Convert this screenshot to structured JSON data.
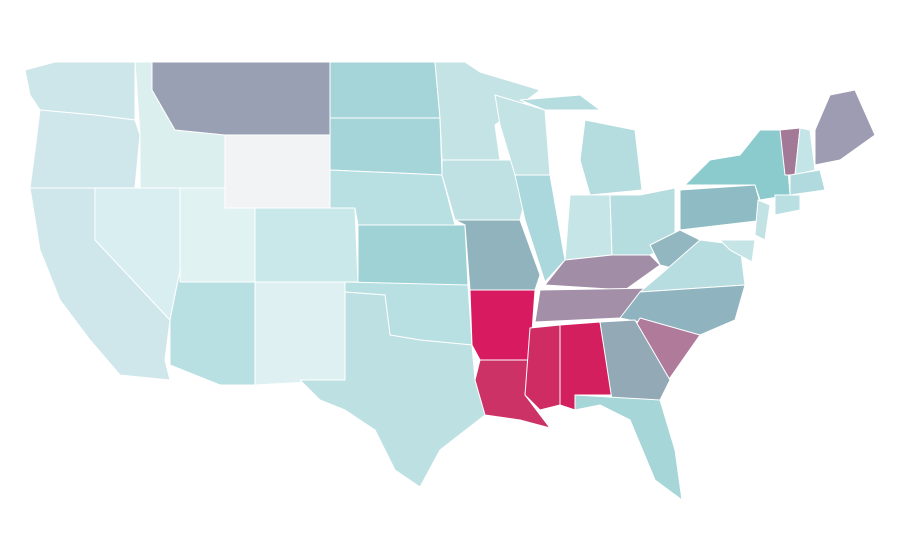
{
  "regions": [
    {
      "color": "#cce6ea"
    },
    {
      "color": "#cfe7eb"
    },
    {
      "color": "#cfe7eb"
    },
    {
      "color": "#dcefef"
    },
    {
      "color": "#d9eef0"
    },
    {
      "color": "#9aa0b3"
    },
    {
      "color": "#f2f3f4"
    },
    {
      "color": "#e1f2f3"
    },
    {
      "color": "#b8dfe2"
    },
    {
      "color": "#c9e8ea"
    },
    {
      "color": "#dff0f2"
    },
    {
      "color": "#a5d5d8"
    },
    {
      "color": "#a5d5d8"
    },
    {
      "color": "#b8dfe2"
    },
    {
      "color": "#9ed2d5"
    },
    {
      "color": "#b8dfe2"
    },
    {
      "color": "#bde0e2"
    },
    {
      "color": "#c4e3e5"
    },
    {
      "color": "#bfe1e3"
    },
    {
      "color": "#90b3bd"
    },
    {
      "color": "#d81b60"
    },
    {
      "color": "#cc3266"
    },
    {
      "color": "#cf2c64"
    },
    {
      "color": "#d41f5e"
    },
    {
      "color": "#c4e3e5"
    },
    {
      "color": "#aad8dc"
    },
    {
      "color": "#c6e5e7"
    },
    {
      "color": "#b5dde0"
    },
    {
      "color": "#b5dde0"
    },
    {
      "color": "#a28da7"
    },
    {
      "color": "#a38fa7"
    },
    {
      "color": "#93b7c1"
    },
    {
      "color": "#b8dde0"
    },
    {
      "color": "#8fb4bf"
    },
    {
      "color": "#b07b9b"
    },
    {
      "color": "#93a9b5"
    },
    {
      "color": "#a6d6d8"
    },
    {
      "color": "#8fbcc4"
    },
    {
      "color": "#8ccbcd"
    },
    {
      "color": "#a27a97"
    },
    {
      "color": "#c4e5e7"
    },
    {
      "color": "#9e9cb3"
    },
    {
      "color": "#c2e2e4"
    },
    {
      "color": "#b0dade"
    },
    {
      "color": "#b9dfe2"
    },
    {
      "color": "#c5e4e6"
    },
    {
      "color": "#b5dde0"
    }
  ]
}
